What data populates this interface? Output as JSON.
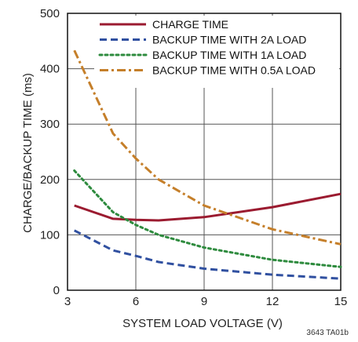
{
  "chart_data": {
    "type": "line",
    "xlabel": "SYSTEM LOAD VOLTAGE (V)",
    "ylabel": "CHARGE/BACKUP TIME (ms)",
    "xlim": [
      3,
      15
    ],
    "ylim": [
      0,
      500
    ],
    "x_ticks": [
      "3",
      "6",
      "9",
      "12",
      "15"
    ],
    "y_ticks": [
      "0",
      "100",
      "200",
      "300",
      "400",
      "500"
    ],
    "grid": true,
    "legend_position": "top-right",
    "series": [
      {
        "name": "CHARGE TIME",
        "color": "#9b1b30",
        "dash": "solid",
        "points": [
          [
            3.3,
            153
          ],
          [
            5,
            129
          ],
          [
            6,
            127
          ],
          [
            7,
            126
          ],
          [
            9,
            132
          ],
          [
            12,
            150
          ],
          [
            15,
            174
          ]
        ]
      },
      {
        "name": "BACKUP TIME WITH 2A LOAD",
        "color": "#3050a0",
        "dash": "dashed",
        "points": [
          [
            3.3,
            108
          ],
          [
            5,
            72
          ],
          [
            6,
            62
          ],
          [
            7,
            51
          ],
          [
            9,
            39
          ],
          [
            12,
            28
          ],
          [
            15,
            21
          ]
        ]
      },
      {
        "name": "BACKUP TIME WITH 1A LOAD",
        "color": "#2e8b3e",
        "dash": "dotted",
        "points": [
          [
            3.3,
            216
          ],
          [
            5,
            141
          ],
          [
            6,
            118
          ],
          [
            7,
            100
          ],
          [
            9,
            77
          ],
          [
            12,
            55
          ],
          [
            15,
            42
          ]
        ]
      },
      {
        "name": "BACKUP TIME WITH 0.5A LOAD",
        "color": "#c57f2a",
        "dash": "dashdot",
        "points": [
          [
            3.3,
            433
          ],
          [
            5,
            283
          ],
          [
            6,
            238
          ],
          [
            7,
            200
          ],
          [
            9,
            153
          ],
          [
            12,
            110
          ],
          [
            15,
            83
          ]
        ]
      }
    ],
    "annotation": "3643 TA01b"
  }
}
